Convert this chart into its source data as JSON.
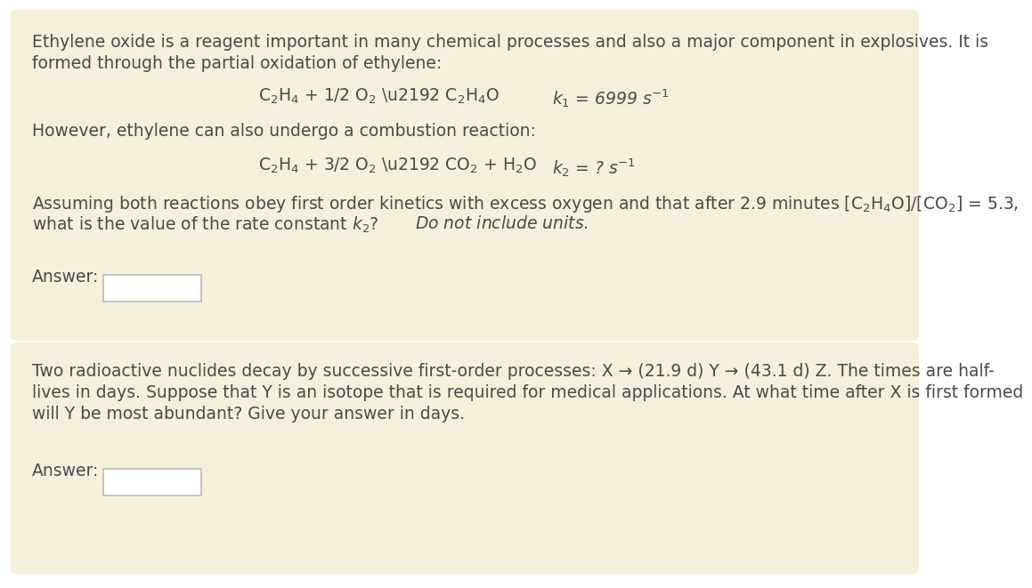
{
  "page_bg": "#ffffff",
  "box1_color": "#f5f0dc",
  "box2_color": "#f5f0dc",
  "separator_color": "#e8e0c8",
  "text_color": "#4a4a4a",
  "box1_line1": "Ethylene oxide is a reagent important in many chemical processes and also a major component in explosives. It is",
  "box1_line2": "formed through the partial oxidation of ethylene:",
  "combustion_intro": "However, ethylene can also undergo a combustion reaction:",
  "assuming_text1": "Assuming both reactions obey first order kinetics with excess oxygen and that after 2.9 minutes [C₂H₄O]/[CO₂] = 5.3,",
  "assuming_text2_plain": "what is the value of the rate constant ",
  "assuming_text2_italic": "Do not include units.",
  "answer_label": "Answer:",
  "box2_text1": "Two radioactive nuclides decay by successive first-order processes: X → (21.9 d) Y → (43.1 d) Z. The times are half-",
  "box2_text2": "lives in days. Suppose that Y is an isotope that is required for medical applications. At what time after X is first formed",
  "box2_text3": "will Y be most abundant? Give your answer in days.",
  "answer_label2": "Answer:",
  "font_size": 13.5,
  "answer_box_color": "#ffffff",
  "answer_box_edge": "#bbbbbb"
}
